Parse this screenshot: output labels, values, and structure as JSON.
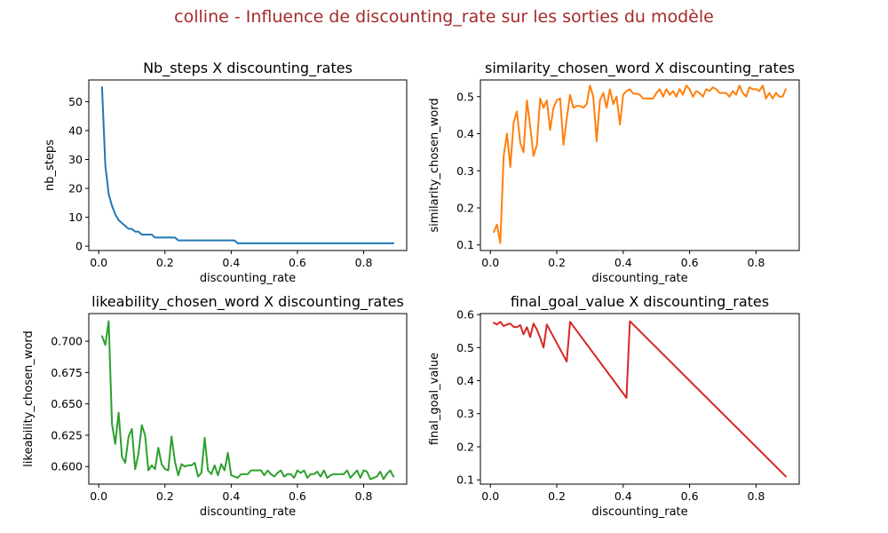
{
  "figure": {
    "suptitle": "colline - Influence de discounting_rate sur les sorties du modèle",
    "suptitle_color": "#a52a2a"
  },
  "chart_data": [
    {
      "type": "line",
      "title": "Nb_steps X discounting_rates",
      "xlabel": "discounting_rate",
      "ylabel": "nb_steps",
      "xlim": [
        -0.03,
        0.93
      ],
      "ylim": [
        -1.5,
        57.5
      ],
      "xticks": [
        0.0,
        0.2,
        0.4,
        0.6,
        0.8
      ],
      "xtick_labels": [
        "0.0",
        "0.2",
        "0.4",
        "0.6",
        "0.8"
      ],
      "yticks": [
        0,
        10,
        20,
        30,
        40,
        50
      ],
      "ytick_labels": [
        "0",
        "10",
        "20",
        "30",
        "40",
        "50"
      ],
      "grid": false,
      "series": [
        {
          "color": "#1f77b4",
          "x": [
            0.01,
            0.02,
            0.03,
            0.04,
            0.05,
            0.06,
            0.07,
            0.08,
            0.09,
            0.1,
            0.11,
            0.12,
            0.13,
            0.14,
            0.15,
            0.16,
            0.17,
            0.18,
            0.19,
            0.2,
            0.21,
            0.22,
            0.23,
            0.24,
            0.25,
            0.3,
            0.35,
            0.4,
            0.41,
            0.42,
            0.5,
            0.6,
            0.7,
            0.8,
            0.89
          ],
          "y": [
            55,
            28,
            18,
            14,
            11,
            9,
            8,
            7,
            6,
            6,
            5,
            5,
            4,
            4,
            4,
            4,
            3,
            3,
            3,
            3,
            3,
            3,
            3,
            2,
            2,
            2,
            2,
            2,
            2,
            1,
            1,
            1,
            1,
            1,
            1
          ]
        }
      ]
    },
    {
      "type": "line",
      "title": "similarity_chosen_word X discounting_rates",
      "xlabel": "discounting_rate",
      "ylabel": "similarity_chosen_word",
      "xlim": [
        -0.03,
        0.93
      ],
      "ylim": [
        0.085,
        0.545
      ],
      "xticks": [
        0.0,
        0.2,
        0.4,
        0.6,
        0.8
      ],
      "xtick_labels": [
        "0.0",
        "0.2",
        "0.4",
        "0.6",
        "0.8"
      ],
      "yticks": [
        0.1,
        0.2,
        0.3,
        0.4,
        0.5
      ],
      "ytick_labels": [
        "0.1",
        "0.2",
        "0.3",
        "0.4",
        "0.5"
      ],
      "grid": false,
      "series": [
        {
          "color": "#ff7f0e",
          "x": [
            0.01,
            0.02,
            0.03,
            0.04,
            0.05,
            0.06,
            0.07,
            0.08,
            0.09,
            0.1,
            0.11,
            0.12,
            0.13,
            0.14,
            0.15,
            0.16,
            0.17,
            0.18,
            0.19,
            0.2,
            0.21,
            0.22,
            0.23,
            0.24,
            0.25,
            0.26,
            0.27,
            0.28,
            0.29,
            0.3,
            0.31,
            0.32,
            0.33,
            0.34,
            0.35,
            0.36,
            0.37,
            0.38,
            0.39,
            0.4,
            0.41,
            0.42,
            0.43,
            0.44,
            0.45,
            0.46,
            0.47,
            0.48,
            0.49,
            0.5,
            0.51,
            0.52,
            0.53,
            0.54,
            0.55,
            0.56,
            0.57,
            0.58,
            0.59,
            0.6,
            0.61,
            0.62,
            0.63,
            0.64,
            0.65,
            0.66,
            0.67,
            0.68,
            0.69,
            0.7,
            0.71,
            0.72,
            0.73,
            0.74,
            0.75,
            0.76,
            0.77,
            0.78,
            0.79,
            0.8,
            0.81,
            0.82,
            0.83,
            0.84,
            0.85,
            0.86,
            0.87,
            0.88,
            0.89
          ],
          "y": [
            0.135,
            0.155,
            0.105,
            0.34,
            0.4,
            0.31,
            0.43,
            0.46,
            0.375,
            0.35,
            0.49,
            0.42,
            0.34,
            0.37,
            0.495,
            0.47,
            0.49,
            0.41,
            0.47,
            0.49,
            0.495,
            0.37,
            0.44,
            0.505,
            0.47,
            0.475,
            0.475,
            0.47,
            0.48,
            0.53,
            0.5,
            0.38,
            0.49,
            0.51,
            0.47,
            0.52,
            0.48,
            0.5,
            0.425,
            0.505,
            0.515,
            0.52,
            0.508,
            0.508,
            0.505,
            0.495,
            0.495,
            0.495,
            0.495,
            0.51,
            0.52,
            0.5,
            0.52,
            0.505,
            0.515,
            0.5,
            0.52,
            0.505,
            0.53,
            0.52,
            0.5,
            0.515,
            0.51,
            0.5,
            0.52,
            0.515,
            0.525,
            0.52,
            0.51,
            0.51,
            0.51,
            0.5,
            0.515,
            0.505,
            0.53,
            0.51,
            0.5,
            0.525,
            0.52,
            0.52,
            0.515,
            0.53,
            0.495,
            0.51,
            0.495,
            0.51,
            0.5,
            0.5,
            0.52
          ]
        }
      ]
    },
    {
      "type": "line",
      "title": "likeability_chosen_word X discounting_rates",
      "xlabel": "discounting_rate",
      "ylabel": "likeability_chosen_word",
      "xlim": [
        -0.03,
        0.93
      ],
      "ylim": [
        0.586,
        0.722
      ],
      "xticks": [
        0.0,
        0.2,
        0.4,
        0.6,
        0.8
      ],
      "xtick_labels": [
        "0.0",
        "0.2",
        "0.4",
        "0.6",
        "0.8"
      ],
      "yticks": [
        0.6,
        0.625,
        0.65,
        0.675,
        0.7
      ],
      "ytick_labels": [
        "0.600",
        "0.625",
        "0.650",
        "0.675",
        "0.700"
      ],
      "grid": false,
      "series": [
        {
          "color": "#2ca02c",
          "x": [
            0.01,
            0.02,
            0.03,
            0.04,
            0.05,
            0.06,
            0.07,
            0.08,
            0.09,
            0.1,
            0.11,
            0.12,
            0.13,
            0.14,
            0.15,
            0.16,
            0.17,
            0.18,
            0.19,
            0.2,
            0.21,
            0.22,
            0.23,
            0.24,
            0.25,
            0.26,
            0.27,
            0.28,
            0.29,
            0.3,
            0.31,
            0.32,
            0.33,
            0.34,
            0.35,
            0.36,
            0.37,
            0.38,
            0.39,
            0.4,
            0.41,
            0.42,
            0.43,
            0.44,
            0.45,
            0.46,
            0.47,
            0.48,
            0.49,
            0.5,
            0.51,
            0.52,
            0.53,
            0.54,
            0.55,
            0.56,
            0.57,
            0.58,
            0.59,
            0.6,
            0.61,
            0.62,
            0.63,
            0.64,
            0.65,
            0.66,
            0.67,
            0.68,
            0.69,
            0.7,
            0.71,
            0.72,
            0.73,
            0.74,
            0.75,
            0.76,
            0.77,
            0.78,
            0.79,
            0.8,
            0.81,
            0.82,
            0.83,
            0.84,
            0.85,
            0.86,
            0.87,
            0.88,
            0.89
          ],
          "y": [
            0.704,
            0.697,
            0.716,
            0.634,
            0.618,
            0.643,
            0.608,
            0.603,
            0.624,
            0.63,
            0.598,
            0.61,
            0.633,
            0.625,
            0.597,
            0.601,
            0.598,
            0.615,
            0.602,
            0.598,
            0.597,
            0.624,
            0.604,
            0.593,
            0.602,
            0.6,
            0.601,
            0.601,
            0.603,
            0.592,
            0.595,
            0.623,
            0.597,
            0.594,
            0.601,
            0.593,
            0.602,
            0.597,
            0.611,
            0.593,
            0.592,
            0.591,
            0.594,
            0.594,
            0.594,
            0.597,
            0.597,
            0.597,
            0.597,
            0.593,
            0.597,
            0.594,
            0.592,
            0.595,
            0.597,
            0.592,
            0.594,
            0.594,
            0.591,
            0.597,
            0.595,
            0.597,
            0.591,
            0.594,
            0.594,
            0.596,
            0.592,
            0.597,
            0.591,
            0.593,
            0.594,
            0.594,
            0.594,
            0.594,
            0.597,
            0.591,
            0.594,
            0.597,
            0.591,
            0.597,
            0.596,
            0.59,
            0.591,
            0.592,
            0.596,
            0.59,
            0.594,
            0.597,
            0.592
          ]
        }
      ]
    },
    {
      "type": "line",
      "title": "final_goal_value X discounting_rates",
      "xlabel": "discounting_rate",
      "ylabel": "final_goal_value",
      "xlim": [
        -0.03,
        0.93
      ],
      "ylim": [
        0.087,
        0.603
      ],
      "xticks": [
        0.0,
        0.2,
        0.4,
        0.6,
        0.8
      ],
      "xtick_labels": [
        "0.0",
        "0.2",
        "0.4",
        "0.6",
        "0.8"
      ],
      "yticks": [
        0.1,
        0.2,
        0.3,
        0.4,
        0.5,
        0.6
      ],
      "ytick_labels": [
        "0.1",
        "0.2",
        "0.3",
        "0.4",
        "0.5",
        "0.6"
      ],
      "grid": false,
      "series": [
        {
          "color": "#d62728",
          "x": [
            0.01,
            0.02,
            0.03,
            0.04,
            0.05,
            0.06,
            0.07,
            0.08,
            0.09,
            0.1,
            0.11,
            0.12,
            0.13,
            0.14,
            0.15,
            0.16,
            0.17,
            0.23,
            0.24,
            0.41,
            0.42,
            0.89
          ],
          "y": [
            0.575,
            0.57,
            0.578,
            0.565,
            0.57,
            0.573,
            0.563,
            0.562,
            0.568,
            0.54,
            0.562,
            0.532,
            0.573,
            0.555,
            0.53,
            0.5,
            0.57,
            0.458,
            0.578,
            0.348,
            0.58,
            0.11
          ]
        }
      ]
    }
  ]
}
